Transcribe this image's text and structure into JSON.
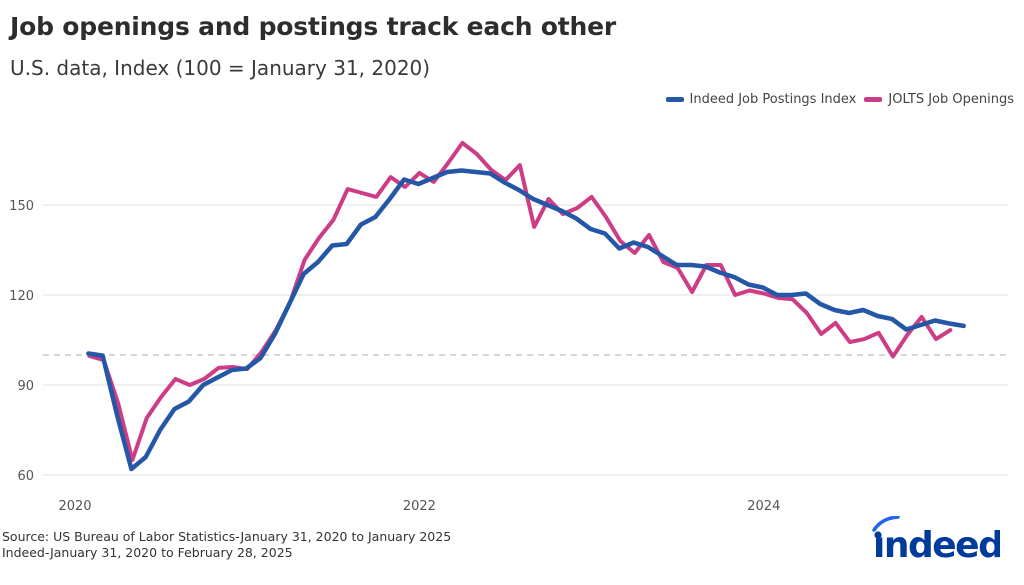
{
  "title": "Job openings and postings track each other",
  "subtitle": "U.S. data, Index (100 = January 31, 2020)",
  "source_line1": "Source: US Bureau of Labor Statistics-January 31, 2020 to January 2025",
  "source_line2": "Indeed-January 31, 2020 to February 28, 2025",
  "logo_text": "indeed",
  "chart_data": {
    "type": "line",
    "legend_placement": "top-right",
    "grid": "horizontal",
    "ylim": [
      57,
      175
    ],
    "yticks": [
      60,
      90,
      120,
      150
    ],
    "ytick_labels": [
      "60",
      "90",
      "120",
      "150"
    ],
    "reference_line": 100,
    "xticks": [
      "2020",
      "2022",
      "2024"
    ],
    "xlim": [
      "2019-11",
      "2025-06"
    ],
    "series": [
      {
        "name": "Indeed Job Postings Index",
        "color": "#2557a7",
        "start": "2020-01",
        "frequency": "monthly (month end)",
        "values": [
          100.5,
          99.8,
          80,
          62,
          66,
          75,
          82,
          84.5,
          90,
          92.5,
          95,
          95.5,
          99,
          107,
          117,
          127,
          131,
          136.5,
          137,
          143.5,
          146,
          152,
          158.5,
          157,
          159,
          161,
          161.5,
          161,
          160.5,
          157.5,
          155,
          152,
          150,
          148,
          145.5,
          142,
          140.5,
          135.5,
          137.5,
          136,
          133,
          130,
          130,
          129.5,
          127.5,
          126,
          123.5,
          122.5,
          120,
          120,
          120.5,
          117,
          115,
          114,
          115,
          113,
          112,
          108.5,
          110,
          111.5,
          110.5,
          109.7
        ]
      },
      {
        "name": "JOLTS Job Openings",
        "color": "#cd3d86",
        "start": "2020-01",
        "frequency": "monthly",
        "values": [
          99.7,
          98.3,
          84,
          65,
          79,
          86,
          92,
          90,
          92,
          95.7,
          96,
          95.3,
          101,
          108.3,
          117.7,
          131.7,
          139,
          145,
          155.3,
          154,
          152.7,
          159.3,
          156,
          160.7,
          157.7,
          164,
          170.7,
          167,
          161.7,
          158.3,
          163.3,
          142.7,
          152,
          147,
          149,
          152.7,
          146,
          138,
          134,
          140,
          131,
          129,
          121,
          130,
          130,
          120,
          121.5,
          120.5,
          119,
          118.6,
          114,
          107,
          110.7,
          104.3,
          105.3,
          107.4,
          99.5,
          106.7,
          112.7,
          105.3,
          108.3
        ]
      }
    ]
  }
}
